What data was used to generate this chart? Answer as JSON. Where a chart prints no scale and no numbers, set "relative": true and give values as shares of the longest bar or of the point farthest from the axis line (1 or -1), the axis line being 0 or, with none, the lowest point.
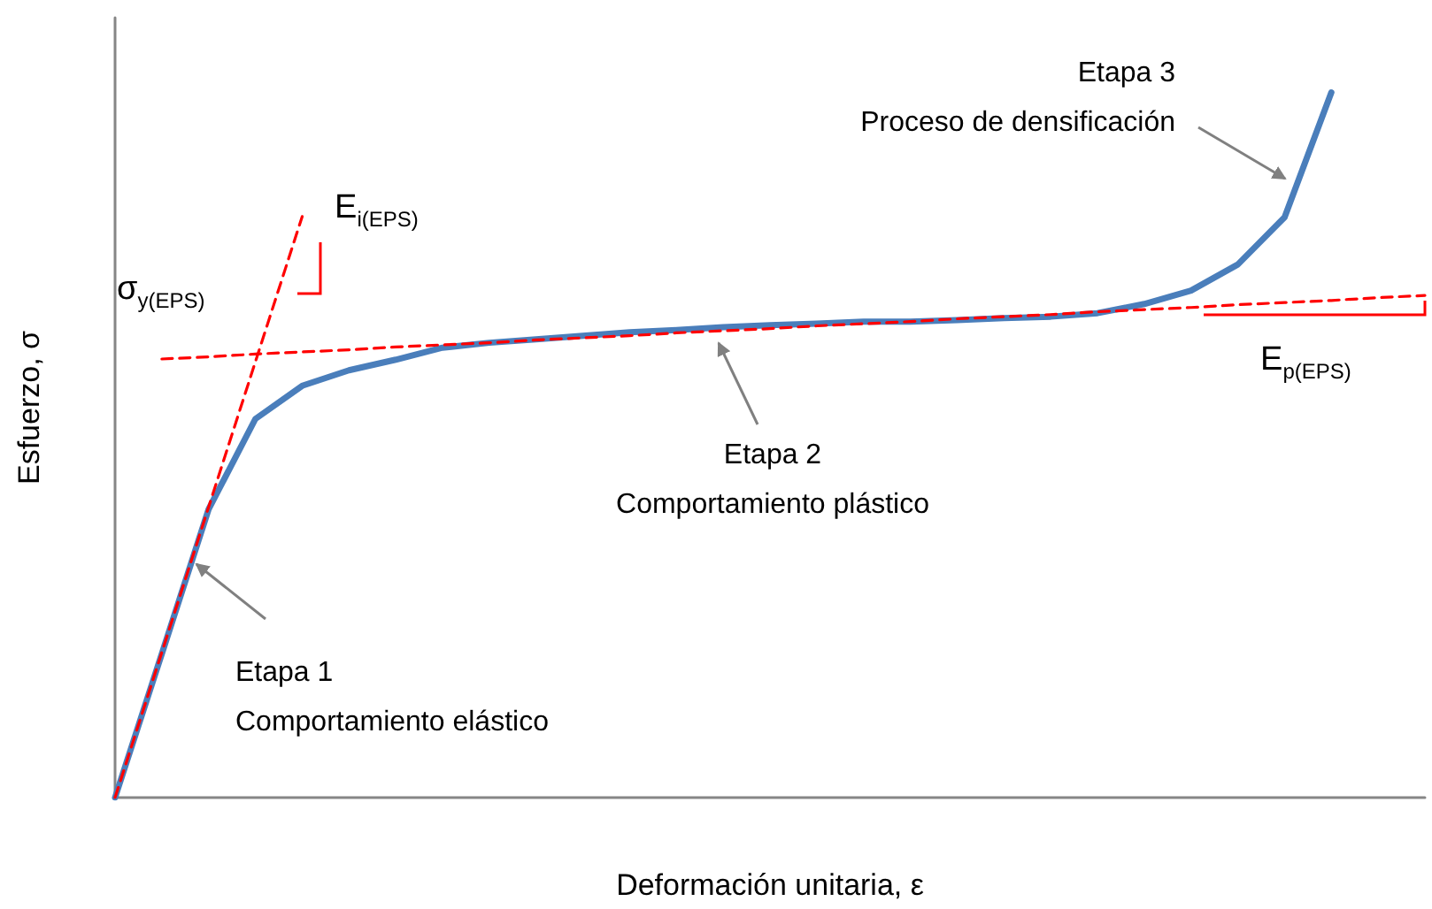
{
  "chart_data": {
    "type": "line",
    "relative": true,
    "xlabel": "Deformación unitaria, ε",
    "ylabel": "Esfuerzo, σ",
    "marker": "none",
    "categories": [
      null,
      null,
      null,
      null,
      null,
      null,
      null,
      null,
      null,
      null,
      null,
      null,
      null,
      null,
      null,
      null,
      null,
      null,
      null,
      null,
      null,
      null,
      null,
      null,
      null,
      null,
      null,
      null,
      null
    ],
    "series": [
      {
        "color": "#4a7ebb",
        "line_style": "solid",
        "values": [
          0,
          0.204,
          0.409,
          0.537,
          0.584,
          0.606,
          0.621,
          0.638,
          0.645,
          0.65,
          0.655,
          0.66,
          0.663,
          0.667,
          0.67,
          0.672,
          0.675,
          0.675,
          0.677,
          0.68,
          0.682,
          0.687,
          0.7,
          0.719,
          0.756,
          0.823,
          1.0,
          null,
          null
        ]
      },
      {
        "color": "#ff0000",
        "line_style": "dashed",
        "values": [
          0,
          0.206,
          0.412,
          0.618,
          0.824,
          null,
          null,
          null,
          null,
          null,
          null,
          null,
          null,
          null,
          null,
          null,
          null,
          null,
          null,
          null,
          null,
          null,
          null,
          null,
          null,
          null,
          null,
          null,
          null
        ]
      },
      {
        "color": "#ff0000",
        "line_style": "dashed",
        "values": [
          null,
          0.622,
          0.625,
          0.629,
          0.632,
          0.635,
          0.639,
          0.642,
          0.645,
          0.649,
          0.652,
          0.655,
          0.659,
          0.662,
          0.665,
          0.669,
          0.672,
          0.675,
          0.679,
          0.682,
          0.685,
          0.689,
          0.692,
          0.695,
          0.699,
          0.702,
          0.705,
          0.709,
          0.712
        ]
      }
    ],
    "annotations": [
      "Etapa 1\nComportamiento elástico",
      "Etapa 2\nComportamiento plástico",
      "Etapa 3\nProceso de densificación",
      "σ$_{y(EPS)}$",
      "E$_{i(EPS)}$",
      "E$_{p(EPS)}$"
    ]
  }
}
